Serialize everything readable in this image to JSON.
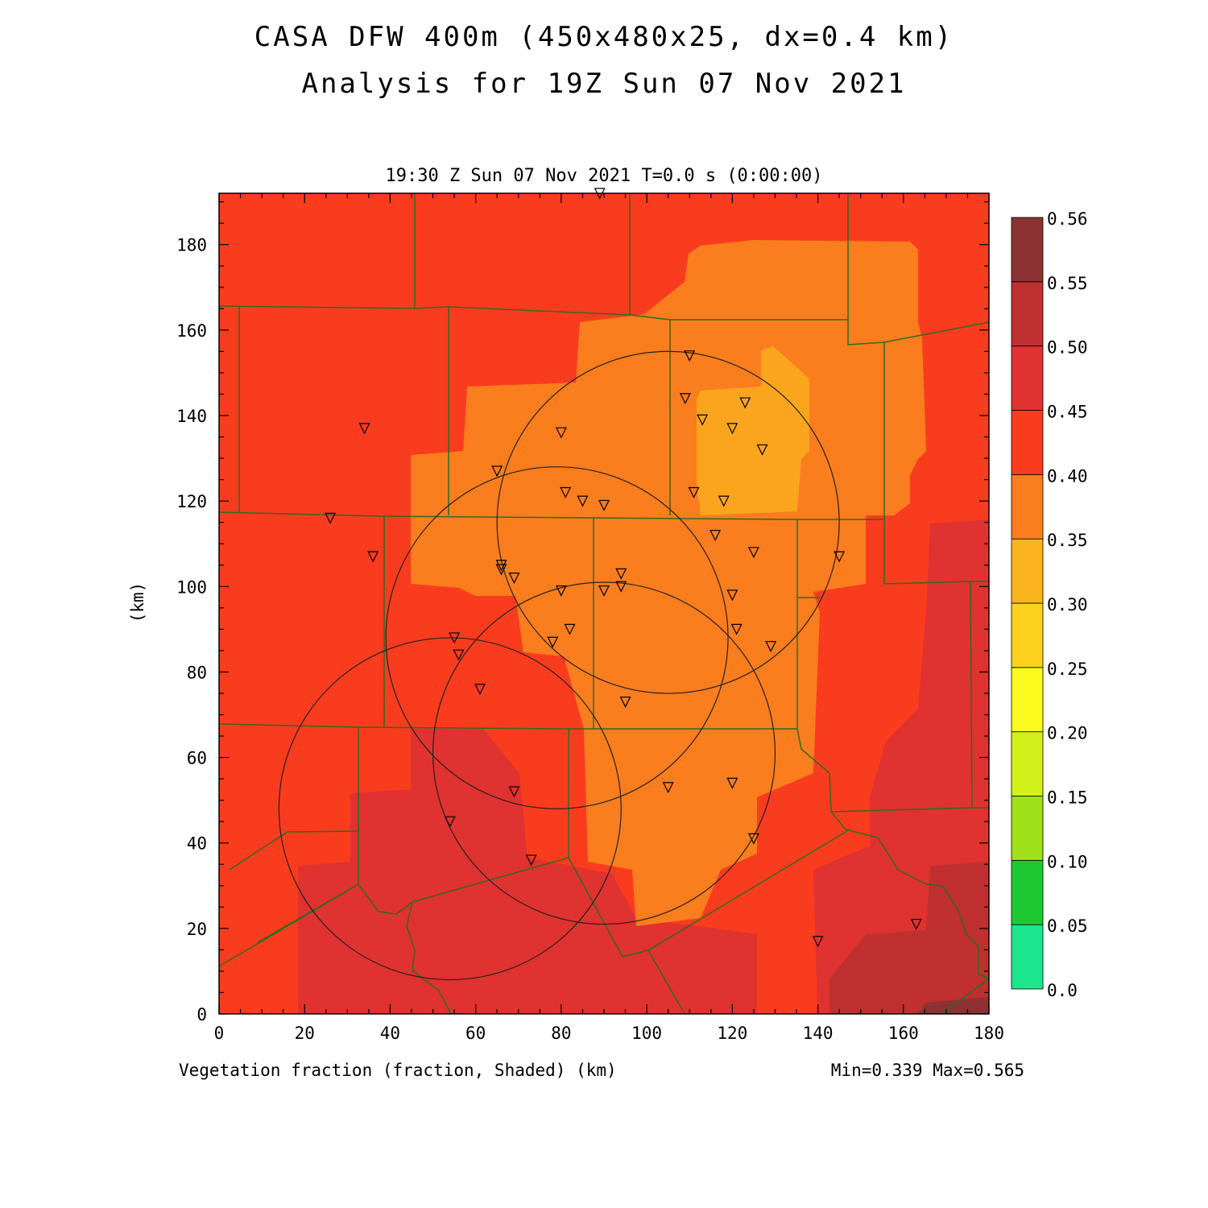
{
  "title_line1": "CASA DFW 400m (450x480x25, dx=0.4 km)",
  "title_line2": "Analysis for 19Z Sun 07 Nov 2021",
  "subtitle": "19:30 Z Sun 07 Nov 2021    T=0.0 s (0:00:00)",
  "field_label": "Vegetation fraction (fraction, Shaded)  (km)",
  "minmax_label": "Min=0.339 Max=0.565",
  "y_axis_label": "(km)",
  "chart_data": {
    "type": "heatmap",
    "xlim": [
      0,
      180
    ],
    "ylim": [
      0,
      192
    ],
    "x_ticks": [
      0,
      20,
      40,
      60,
      80,
      100,
      120,
      140,
      160,
      180
    ],
    "y_ticks": [
      0,
      20,
      40,
      60,
      80,
      100,
      120,
      140,
      160,
      180
    ],
    "colorbar": {
      "levels": [
        "0.0",
        "0.05",
        "0.10",
        "0.15",
        "0.20",
        "0.25",
        "0.30",
        "0.35",
        "0.40",
        "0.45",
        "0.50",
        "0.55",
        "0.56"
      ],
      "colors": [
        "#1de68f",
        "#1ec832",
        "#9ee01a",
        "#d2f01a",
        "#fafa1e",
        "#fcd21e",
        "#fbb41e",
        "#fa7d1e",
        "#fa3c1e",
        "#e03230",
        "#c03030",
        "#8c3232"
      ]
    },
    "radar_rings": [
      {
        "center_x": 105,
        "center_y": 115,
        "radius": 40
      },
      {
        "center_x": 79,
        "center_y": 88,
        "radius": 40
      },
      {
        "center_x": 90,
        "center_y": 61,
        "radius": 40
      },
      {
        "center_x": 54,
        "center_y": 48,
        "radius": 40
      }
    ],
    "stations": [
      [
        89,
        192
      ],
      [
        110,
        154
      ],
      [
        109,
        144
      ],
      [
        123,
        143
      ],
      [
        113,
        139
      ],
      [
        120,
        137
      ],
      [
        127,
        132
      ],
      [
        34,
        137
      ],
      [
        80,
        136
      ],
      [
        65,
        127
      ],
      [
        111,
        122
      ],
      [
        81,
        122
      ],
      [
        85,
        120
      ],
      [
        90,
        119
      ],
      [
        118,
        120
      ],
      [
        26,
        116
      ],
      [
        116,
        112
      ],
      [
        125,
        108
      ],
      [
        145,
        107
      ],
      [
        36,
        107
      ],
      [
        66,
        105
      ],
      [
        66,
        104
      ],
      [
        69,
        102
      ],
      [
        94,
        103
      ],
      [
        94,
        100
      ],
      [
        80,
        99
      ],
      [
        90,
        99
      ],
      [
        120,
        98
      ],
      [
        55,
        88
      ],
      [
        82,
        90
      ],
      [
        78,
        87
      ],
      [
        121,
        90
      ],
      [
        129,
        86
      ],
      [
        56,
        84
      ],
      [
        61,
        76
      ],
      [
        95,
        73
      ],
      [
        105,
        53
      ],
      [
        120,
        54
      ],
      [
        69,
        52
      ],
      [
        54,
        45
      ],
      [
        125,
        41
      ],
      [
        73,
        36
      ],
      [
        163,
        21
      ],
      [
        140,
        17
      ]
    ]
  }
}
